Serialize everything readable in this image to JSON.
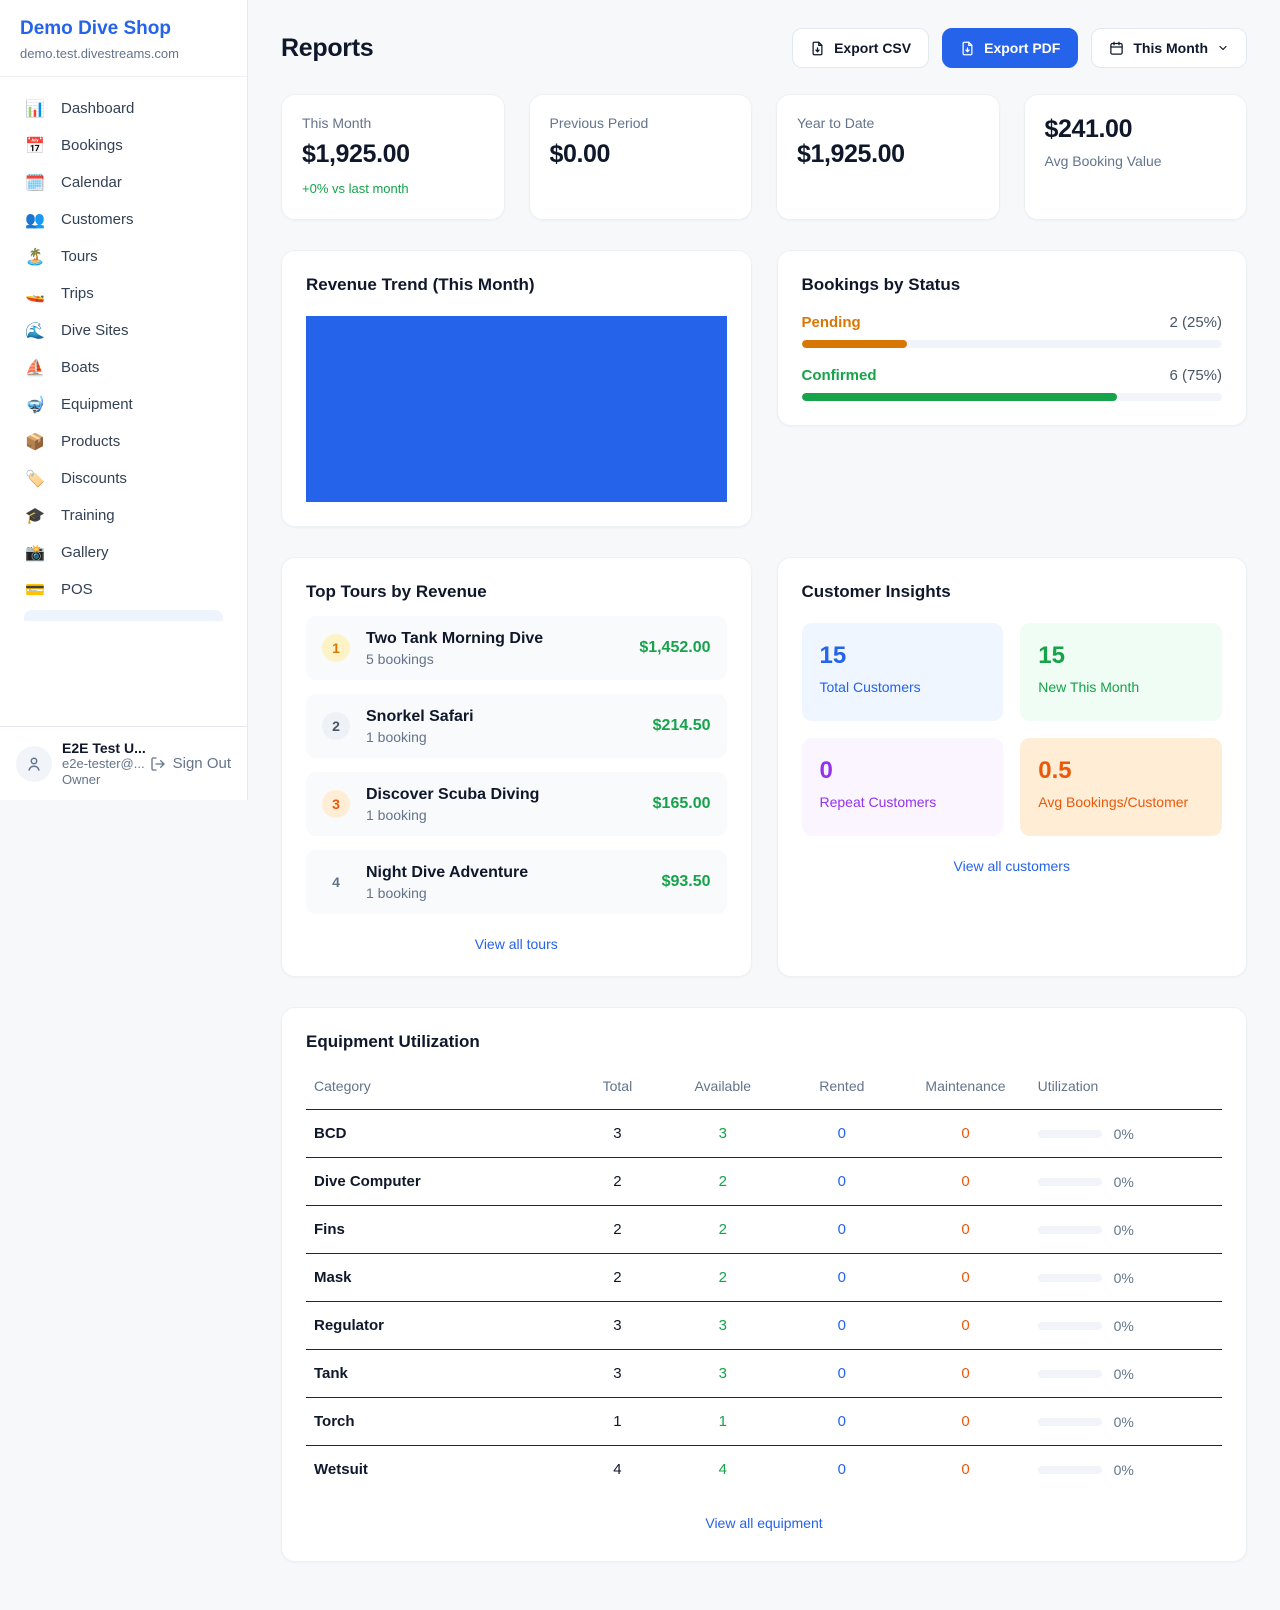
{
  "brand": {
    "name": "Demo Dive Shop",
    "domain": "demo.test.divestreams.com"
  },
  "sidebar": {
    "items": [
      {
        "label": "Dashboard",
        "icon": "📊"
      },
      {
        "label": "Bookings",
        "icon": "📅"
      },
      {
        "label": "Calendar",
        "icon": "🗓️"
      },
      {
        "label": "Customers",
        "icon": "👥"
      },
      {
        "label": "Tours",
        "icon": "🏝️"
      },
      {
        "label": "Trips",
        "icon": "🚤"
      },
      {
        "label": "Dive Sites",
        "icon": "🌊"
      },
      {
        "label": "Boats",
        "icon": "⛵"
      },
      {
        "label": "Equipment",
        "icon": "🤿"
      },
      {
        "label": "Products",
        "icon": "📦"
      },
      {
        "label": "Discounts",
        "icon": "🏷️"
      },
      {
        "label": "Training",
        "icon": "🎓"
      },
      {
        "label": "Gallery",
        "icon": "📸"
      },
      {
        "label": "POS",
        "icon": "💳"
      }
    ],
    "user": {
      "name": "E2E Test U...",
      "email": "e2e-tester@...",
      "role": "Owner",
      "signout": "Sign Out"
    }
  },
  "header": {
    "title": "Reports",
    "export_csv": "Export CSV",
    "export_pdf": "Export PDF",
    "period": "This Month"
  },
  "stats": [
    {
      "label": "This Month",
      "value": "$1,925.00",
      "delta": "+0% vs last month"
    },
    {
      "label": "Previous Period",
      "value": "$0.00"
    },
    {
      "label": "Year to Date",
      "value": "$1,925.00"
    },
    {
      "label": "Avg Booking Value",
      "value": "$241.00"
    }
  ],
  "revenue_trend": {
    "title": "Revenue Trend (This Month)",
    "bar_color": "#2563eb"
  },
  "bookings_by_status": {
    "title": "Bookings by Status",
    "items": [
      {
        "label": "Pending",
        "count": "2 (25%)",
        "pct": 25,
        "color": "#d97706"
      },
      {
        "label": "Confirmed",
        "count": "6 (75%)",
        "pct": 75,
        "color": "#16a34a"
      }
    ]
  },
  "top_tours": {
    "title": "Top Tours by Revenue",
    "rows": [
      {
        "rank": "1",
        "name": "Two Tank Morning Dive",
        "bookings": "5 bookings",
        "amount": "$1,452.00"
      },
      {
        "rank": "2",
        "name": "Snorkel Safari",
        "bookings": "1 booking",
        "amount": "$214.50"
      },
      {
        "rank": "3",
        "name": "Discover Scuba Diving",
        "bookings": "1 booking",
        "amount": "$165.00"
      },
      {
        "rank": "4",
        "name": "Night Dive Adventure",
        "bookings": "1 booking",
        "amount": "$93.50"
      }
    ],
    "view_all": "View all tours"
  },
  "customer_insights": {
    "title": "Customer Insights",
    "tiles": [
      {
        "value": "15",
        "label": "Total Customers"
      },
      {
        "value": "15",
        "label": "New This Month"
      },
      {
        "value": "0",
        "label": "Repeat Customers"
      },
      {
        "value": "0.5",
        "label": "Avg Bookings/Customer"
      }
    ],
    "view_all": "View all customers"
  },
  "equipment": {
    "title": "Equipment Utilization",
    "headers": [
      "Category",
      "Total",
      "Available",
      "Rented",
      "Maintenance",
      "Utilization"
    ],
    "rows": [
      {
        "category": "BCD",
        "total": "3",
        "available": "3",
        "rented": "0",
        "maintenance": "0",
        "utilization": "0%",
        "pct": 0
      },
      {
        "category": "Dive Computer",
        "total": "2",
        "available": "2",
        "rented": "0",
        "maintenance": "0",
        "utilization": "0%",
        "pct": 0
      },
      {
        "category": "Fins",
        "total": "2",
        "available": "2",
        "rented": "0",
        "maintenance": "0",
        "utilization": "0%",
        "pct": 0
      },
      {
        "category": "Mask",
        "total": "2",
        "available": "2",
        "rented": "0",
        "maintenance": "0",
        "utilization": "0%",
        "pct": 0
      },
      {
        "category": "Regulator",
        "total": "3",
        "available": "3",
        "rented": "0",
        "maintenance": "0",
        "utilization": "0%",
        "pct": 0
      },
      {
        "category": "Tank",
        "total": "3",
        "available": "3",
        "rented": "0",
        "maintenance": "0",
        "utilization": "0%",
        "pct": 0
      },
      {
        "category": "Torch",
        "total": "1",
        "available": "1",
        "rented": "0",
        "maintenance": "0",
        "utilization": "0%",
        "pct": 0
      },
      {
        "category": "Wetsuit",
        "total": "4",
        "available": "4",
        "rented": "0",
        "maintenance": "0",
        "utilization": "0%",
        "pct": 0
      }
    ],
    "view_all": "View all equipment"
  }
}
